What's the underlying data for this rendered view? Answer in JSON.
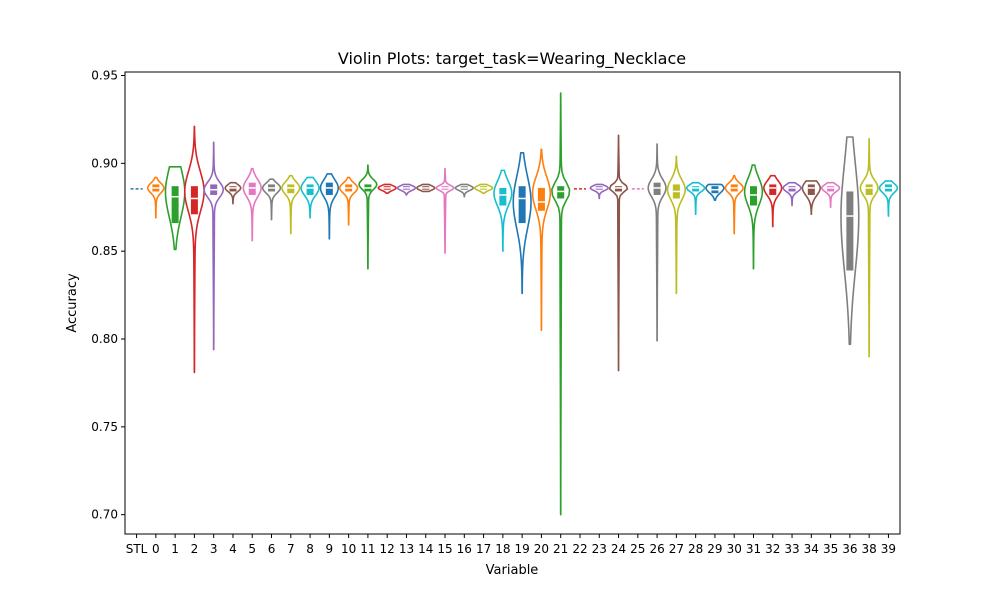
{
  "chart_data": {
    "type": "violin",
    "title": "Violin Plots: target_task=Wearing_Necklace",
    "xlabel": "Variable",
    "ylabel": "Accuracy",
    "ylim": [
      0.689,
      0.952
    ],
    "yticks": [
      0.7,
      0.75,
      0.8,
      0.85,
      0.9,
      0.95
    ],
    "ytick_labels": [
      "0.70",
      "0.75",
      "0.80",
      "0.85",
      "0.90",
      "0.95"
    ],
    "grid": false,
    "baseline": {
      "category": "STL",
      "value": 0.8855,
      "style": "dashed"
    },
    "categories": [
      "STL",
      "0",
      "1",
      "2",
      "3",
      "4",
      "5",
      "6",
      "7",
      "8",
      "9",
      "10",
      "11",
      "12",
      "13",
      "14",
      "15",
      "16",
      "17",
      "18",
      "19",
      "20",
      "21",
      "22",
      "23",
      "24",
      "25",
      "26",
      "27",
      "28",
      "29",
      "30",
      "31",
      "32",
      "33",
      "34",
      "35",
      "36",
      "38",
      "39"
    ],
    "series": [
      {
        "cat": "STL",
        "type": "dash",
        "value": 0.8855,
        "color": "#1f77b4"
      },
      {
        "cat": "0",
        "min": 0.869,
        "max": 0.892,
        "q1": 0.884,
        "median": 0.886,
        "q3": 0.888,
        "mode": 0.886,
        "width": 0.42,
        "color": "#ff7f0e"
      },
      {
        "cat": "1",
        "min": 0.851,
        "max": 0.898,
        "q1": 0.866,
        "median": 0.881,
        "q3": 0.887,
        "mode": 0.884,
        "width": 0.5,
        "color": "#2ca02c"
      },
      {
        "cat": "2",
        "min": 0.781,
        "max": 0.921,
        "q1": 0.871,
        "median": 0.88,
        "q3": 0.887,
        "mode": 0.884,
        "width": 0.5,
        "color": "#d62728"
      },
      {
        "cat": "3",
        "min": 0.794,
        "max": 0.912,
        "q1": 0.882,
        "median": 0.885,
        "q3": 0.888,
        "mode": 0.885,
        "width": 0.5,
        "color": "#9467bd"
      },
      {
        "cat": "4",
        "min": 0.877,
        "max": 0.889,
        "q1": 0.884,
        "median": 0.886,
        "q3": 0.887,
        "mode": 0.886,
        "width": 0.4,
        "color": "#8c564b"
      },
      {
        "cat": "5",
        "min": 0.856,
        "max": 0.897,
        "q1": 0.882,
        "median": 0.886,
        "q3": 0.889,
        "mode": 0.886,
        "width": 0.46,
        "color": "#e377c2"
      },
      {
        "cat": "6",
        "min": 0.868,
        "max": 0.891,
        "q1": 0.884,
        "median": 0.886,
        "q3": 0.888,
        "mode": 0.886,
        "width": 0.46,
        "color": "#7f7f7f"
      },
      {
        "cat": "7",
        "min": 0.86,
        "max": 0.893,
        "q1": 0.883,
        "median": 0.886,
        "q3": 0.888,
        "mode": 0.886,
        "width": 0.46,
        "color": "#bcbd22"
      },
      {
        "cat": "8",
        "min": 0.869,
        "max": 0.892,
        "q1": 0.882,
        "median": 0.886,
        "q3": 0.888,
        "mode": 0.886,
        "width": 0.46,
        "color": "#17becf"
      },
      {
        "cat": "9",
        "min": 0.857,
        "max": 0.894,
        "q1": 0.882,
        "median": 0.886,
        "q3": 0.889,
        "mode": 0.886,
        "width": 0.46,
        "color": "#1f77b4"
      },
      {
        "cat": "10",
        "min": 0.865,
        "max": 0.892,
        "q1": 0.884,
        "median": 0.886,
        "q3": 0.888,
        "mode": 0.886,
        "width": 0.46,
        "color": "#ff7f0e"
      },
      {
        "cat": "11",
        "min": 0.84,
        "max": 0.899,
        "q1": 0.884,
        "median": 0.886,
        "q3": 0.888,
        "mode": 0.888,
        "width": 0.46,
        "color": "#2ca02c"
      },
      {
        "cat": "12",
        "min": 0.883,
        "max": 0.888,
        "q1": 0.885,
        "median": 0.886,
        "q3": 0.887,
        "mode": 0.886,
        "width": 0.46,
        "color": "#d62728"
      },
      {
        "cat": "13",
        "min": 0.882,
        "max": 0.888,
        "q1": 0.885,
        "median": 0.886,
        "q3": 0.887,
        "mode": 0.886,
        "width": 0.46,
        "color": "#9467bd"
      },
      {
        "cat": "14",
        "min": 0.884,
        "max": 0.888,
        "q1": 0.885,
        "median": 0.886,
        "q3": 0.887,
        "mode": 0.886,
        "width": 0.46,
        "color": "#8c564b"
      },
      {
        "cat": "15",
        "min": 0.849,
        "max": 0.897,
        "q1": 0.885,
        "median": 0.886,
        "q3": 0.887,
        "mode": 0.886,
        "width": 0.46,
        "color": "#e377c2"
      },
      {
        "cat": "16",
        "min": 0.881,
        "max": 0.888,
        "q1": 0.885,
        "median": 0.886,
        "q3": 0.887,
        "mode": 0.886,
        "width": 0.46,
        "color": "#7f7f7f"
      },
      {
        "cat": "17",
        "min": 0.883,
        "max": 0.888,
        "q1": 0.885,
        "median": 0.886,
        "q3": 0.887,
        "mode": 0.886,
        "width": 0.46,
        "color": "#bcbd22"
      },
      {
        "cat": "18",
        "min": 0.85,
        "max": 0.896,
        "q1": 0.876,
        "median": 0.882,
        "q3": 0.886,
        "mode": 0.883,
        "width": 0.46,
        "color": "#17becf"
      },
      {
        "cat": "19",
        "min": 0.826,
        "max": 0.906,
        "q1": 0.866,
        "median": 0.88,
        "q3": 0.887,
        "mode": 0.878,
        "width": 0.46,
        "color": "#1f77b4"
      },
      {
        "cat": "20",
        "min": 0.805,
        "max": 0.908,
        "q1": 0.873,
        "median": 0.878,
        "q3": 0.886,
        "mode": 0.883,
        "width": 0.46,
        "color": "#ff7f0e"
      },
      {
        "cat": "21",
        "min": 0.7,
        "max": 0.94,
        "q1": 0.88,
        "median": 0.884,
        "q3": 0.887,
        "mode": 0.884,
        "width": 0.46,
        "color": "#2ca02c"
      },
      {
        "cat": "22",
        "type": "dash",
        "value": 0.8855,
        "color": "#d62728"
      },
      {
        "cat": "23",
        "min": 0.88,
        "max": 0.888,
        "q1": 0.885,
        "median": 0.886,
        "q3": 0.887,
        "mode": 0.886,
        "width": 0.46,
        "color": "#9467bd"
      },
      {
        "cat": "24",
        "min": 0.782,
        "max": 0.916,
        "q1": 0.884,
        "median": 0.886,
        "q3": 0.887,
        "mode": 0.886,
        "width": 0.46,
        "color": "#8c564b"
      },
      {
        "cat": "25",
        "type": "dash",
        "value": 0.8855,
        "color": "#e377c2"
      },
      {
        "cat": "26",
        "min": 0.799,
        "max": 0.911,
        "q1": 0.882,
        "median": 0.886,
        "q3": 0.889,
        "mode": 0.886,
        "width": 0.46,
        "color": "#7f7f7f"
      },
      {
        "cat": "27",
        "min": 0.826,
        "max": 0.904,
        "q1": 0.88,
        "median": 0.884,
        "q3": 0.888,
        "mode": 0.885,
        "width": 0.46,
        "color": "#bcbd22"
      },
      {
        "cat": "28",
        "min": 0.871,
        "max": 0.889,
        "q1": 0.884,
        "median": 0.886,
        "q3": 0.887,
        "mode": 0.886,
        "width": 0.46,
        "color": "#17becf"
      },
      {
        "cat": "29",
        "min": 0.879,
        "max": 0.888,
        "q1": 0.883,
        "median": 0.885,
        "q3": 0.887,
        "mode": 0.886,
        "width": 0.46,
        "color": "#1f77b4"
      },
      {
        "cat": "30",
        "min": 0.86,
        "max": 0.893,
        "q1": 0.884,
        "median": 0.886,
        "q3": 0.888,
        "mode": 0.886,
        "width": 0.46,
        "color": "#ff7f0e"
      },
      {
        "cat": "31",
        "min": 0.84,
        "max": 0.899,
        "q1": 0.876,
        "median": 0.882,
        "q3": 0.887,
        "mode": 0.884,
        "width": 0.46,
        "color": "#2ca02c"
      },
      {
        "cat": "32",
        "min": 0.864,
        "max": 0.893,
        "q1": 0.882,
        "median": 0.886,
        "q3": 0.888,
        "mode": 0.886,
        "width": 0.46,
        "color": "#d62728"
      },
      {
        "cat": "33",
        "min": 0.876,
        "max": 0.889,
        "q1": 0.884,
        "median": 0.886,
        "q3": 0.887,
        "mode": 0.886,
        "width": 0.46,
        "color": "#9467bd"
      },
      {
        "cat": "34",
        "min": 0.871,
        "max": 0.89,
        "q1": 0.882,
        "median": 0.886,
        "q3": 0.888,
        "mode": 0.886,
        "width": 0.46,
        "color": "#8c564b"
      },
      {
        "cat": "35",
        "min": 0.875,
        "max": 0.889,
        "q1": 0.884,
        "median": 0.886,
        "q3": 0.887,
        "mode": 0.886,
        "width": 0.46,
        "color": "#e377c2"
      },
      {
        "cat": "36",
        "min": 0.797,
        "max": 0.915,
        "q1": 0.839,
        "median": 0.87,
        "q3": 0.884,
        "mode": 0.87,
        "width": 0.46,
        "color": "#7f7f7f"
      },
      {
        "cat": "38",
        "min": 0.79,
        "max": 0.914,
        "q1": 0.882,
        "median": 0.886,
        "q3": 0.888,
        "mode": 0.886,
        "width": 0.46,
        "color": "#bcbd22"
      },
      {
        "cat": "39",
        "min": 0.87,
        "max": 0.89,
        "q1": 0.884,
        "median": 0.886,
        "q3": 0.888,
        "mode": 0.886,
        "width": 0.46,
        "color": "#17becf"
      }
    ]
  }
}
